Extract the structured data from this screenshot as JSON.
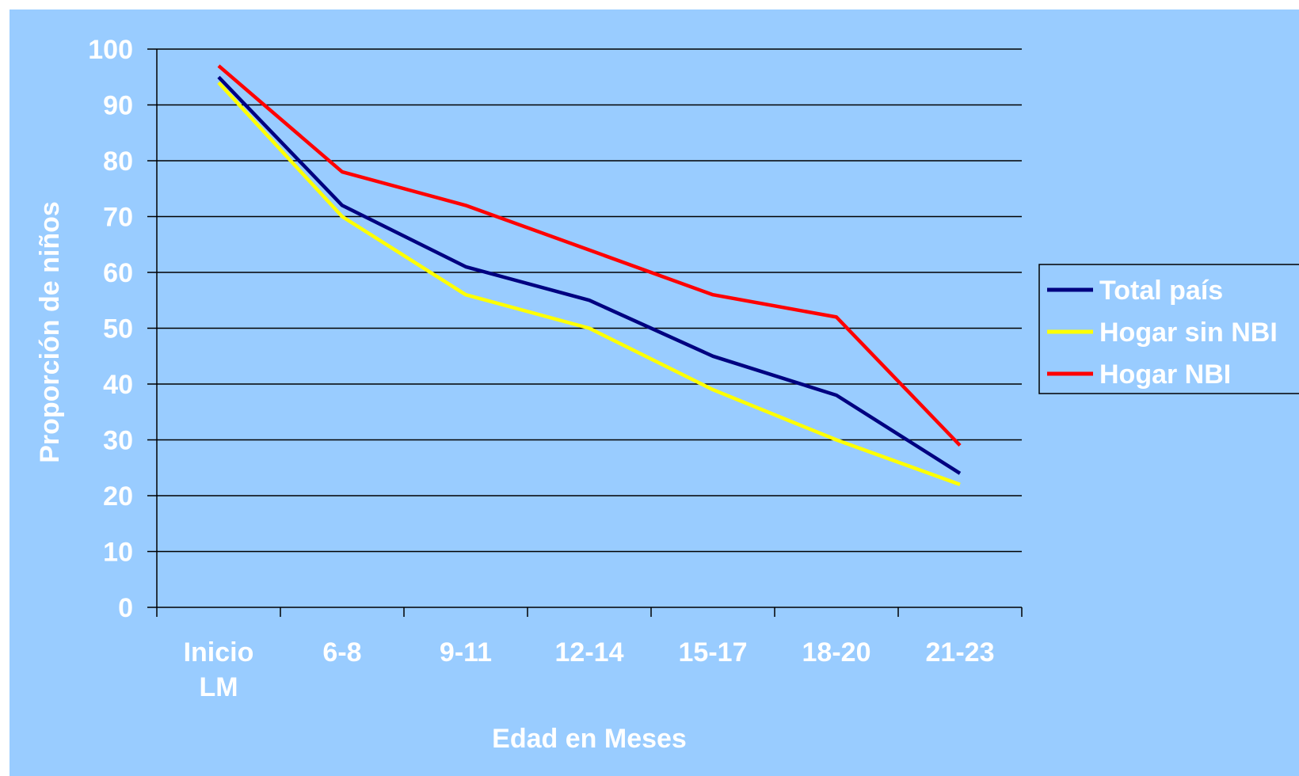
{
  "chart_data": {
    "type": "line",
    "title": "",
    "xlabel": "Edad en Meses",
    "ylabel": "Proporción de niños",
    "ylim": [
      0,
      100
    ],
    "yticks": [
      0,
      10,
      20,
      30,
      40,
      50,
      60,
      70,
      80,
      90,
      100
    ],
    "categories": [
      [
        "Inicio",
        "LM"
      ],
      [
        "6-8"
      ],
      [
        "9-11"
      ],
      [
        "12-14"
      ],
      [
        "15-17"
      ],
      [
        "18-20"
      ],
      [
        "21-23"
      ]
    ],
    "grid": "horizontal",
    "legend_position": "right",
    "background_color": "#99ccff",
    "series": [
      {
        "name": "Total país",
        "color": "#000080",
        "values": [
          95,
          72,
          61,
          55,
          45,
          38,
          24
        ]
      },
      {
        "name": "Hogar sin NBI",
        "color": "#ffff00",
        "values": [
          94,
          70,
          56,
          50,
          39,
          30,
          22
        ]
      },
      {
        "name": "Hogar NBI",
        "color": "#ff0000",
        "values": [
          97,
          78,
          72,
          64,
          56,
          52,
          29
        ]
      }
    ]
  }
}
